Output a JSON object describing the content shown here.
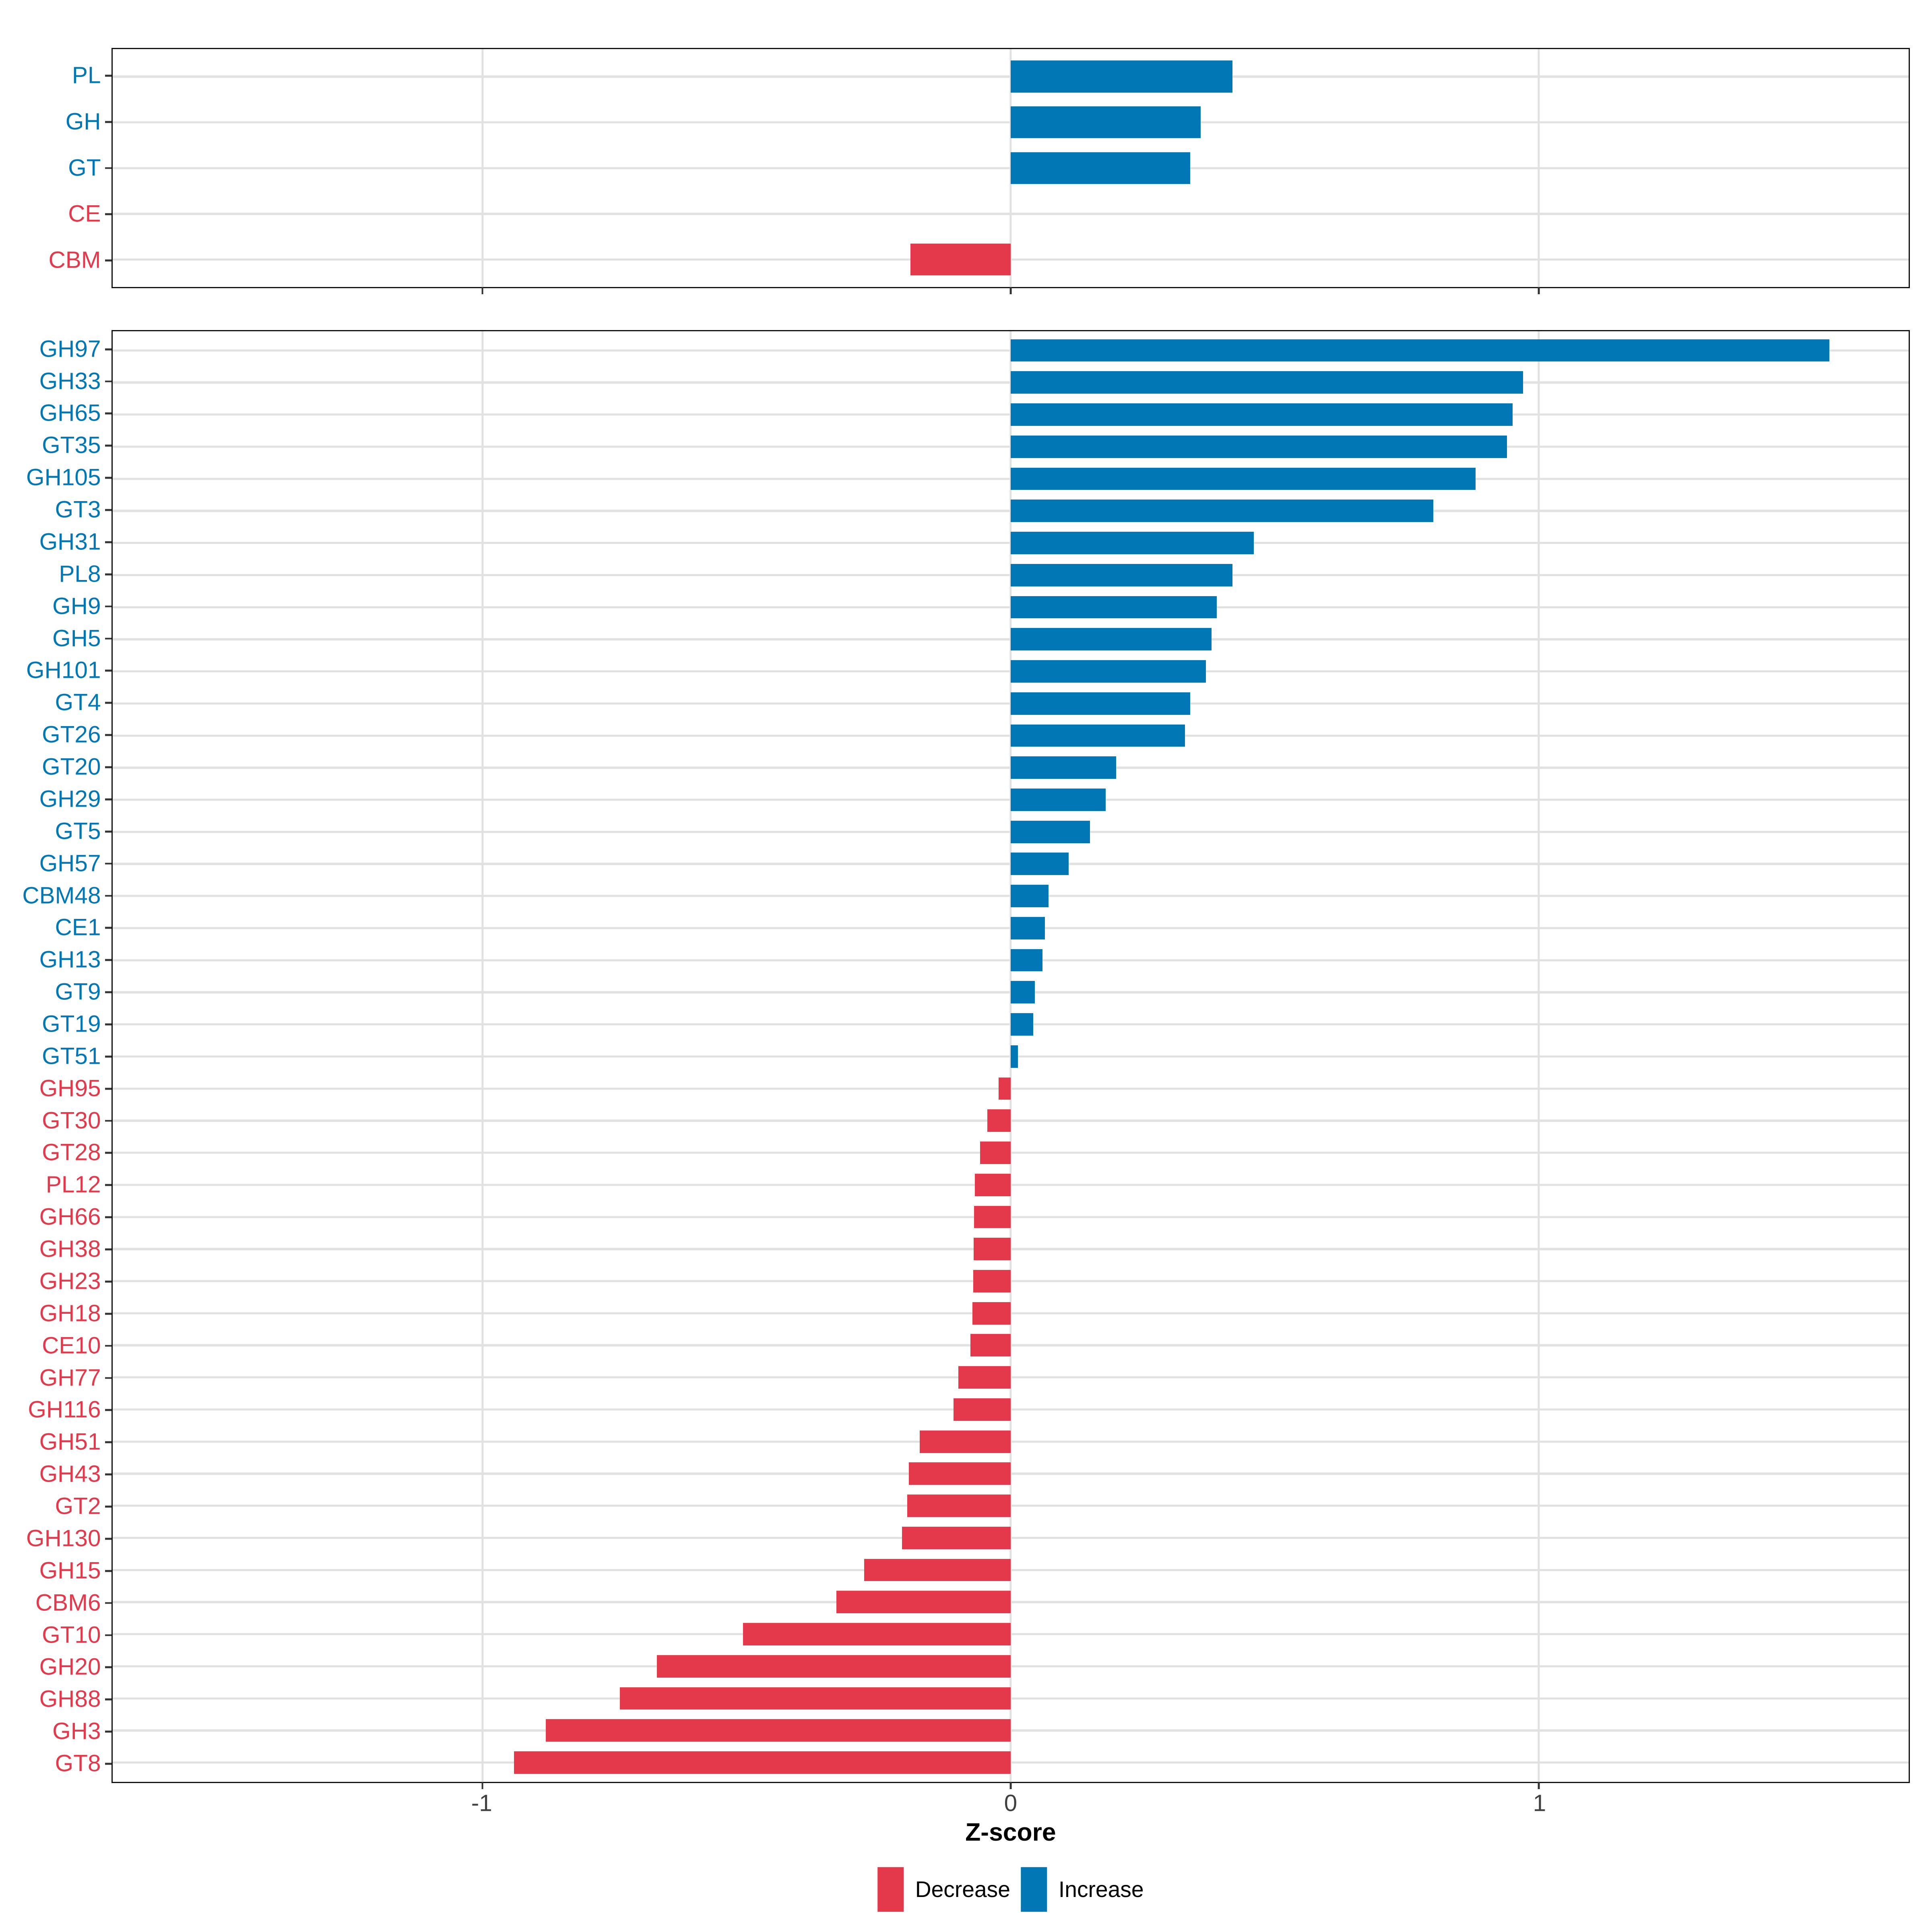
{
  "chart_data": [
    {
      "type": "bar",
      "orientation": "horizontal",
      "panel": "top",
      "categories": [
        "PL",
        "GH",
        "GT",
        "CE",
        "CBM"
      ],
      "values": [
        0.42,
        0.36,
        0.34,
        0.0,
        -0.19
      ],
      "directions": [
        "increase",
        "increase",
        "increase",
        "decrease",
        "decrease"
      ],
      "xlim": [
        -1.7,
        1.7
      ],
      "x_ticks": [
        -1,
        0,
        1
      ],
      "x_tick_labels": [
        "-1",
        "0",
        "1"
      ],
      "xlabel": "Z-score",
      "grid": true
    },
    {
      "type": "bar",
      "orientation": "horizontal",
      "panel": "main",
      "categories": [
        "GH97",
        "GH33",
        "GH65",
        "GT35",
        "GH105",
        "GT3",
        "GH31",
        "PL8",
        "GH9",
        "GH5",
        "GH101",
        "GT4",
        "GT26",
        "GT20",
        "GH29",
        "GT5",
        "GH57",
        "CBM48",
        "CE1",
        "GH13",
        "GT9",
        "GT19",
        "GT51",
        "GH95",
        "GT30",
        "GT28",
        "PL12",
        "GH66",
        "GH38",
        "GH23",
        "GH18",
        "CE10",
        "GH77",
        "GH116",
        "GH51",
        "GH43",
        "GT2",
        "GH130",
        "GH15",
        "CBM6",
        "GT10",
        "GH20",
        "GH88",
        "GH3",
        "GT8"
      ],
      "values": [
        1.55,
        0.97,
        0.95,
        0.94,
        0.88,
        0.8,
        0.46,
        0.42,
        0.39,
        0.38,
        0.37,
        0.34,
        0.33,
        0.2,
        0.18,
        0.15,
        0.11,
        0.072,
        0.065,
        0.06,
        0.046,
        0.043,
        0.014,
        -0.023,
        -0.044,
        -0.058,
        -0.068,
        -0.069,
        -0.07,
        -0.071,
        -0.072,
        -0.076,
        -0.099,
        -0.108,
        -0.172,
        -0.193,
        -0.196,
        -0.206,
        -0.277,
        -0.33,
        -0.507,
        -0.67,
        -0.74,
        -0.88,
        -0.94
      ],
      "directions": [
        "increase",
        "increase",
        "increase",
        "increase",
        "increase",
        "increase",
        "increase",
        "increase",
        "increase",
        "increase",
        "increase",
        "increase",
        "increase",
        "increase",
        "increase",
        "increase",
        "increase",
        "increase",
        "increase",
        "increase",
        "increase",
        "increase",
        "increase",
        "decrease",
        "decrease",
        "decrease",
        "decrease",
        "decrease",
        "decrease",
        "decrease",
        "decrease",
        "decrease",
        "decrease",
        "decrease",
        "decrease",
        "decrease",
        "decrease",
        "decrease",
        "decrease",
        "decrease",
        "decrease",
        "decrease",
        "decrease",
        "decrease",
        "decrease"
      ],
      "xlim": [
        -1.7,
        1.7
      ],
      "x_ticks": [
        -1,
        0,
        1
      ],
      "x_tick_labels": [
        "-1",
        "0",
        "1"
      ],
      "xlabel": "Z-score",
      "grid": true,
      "legend_position": "bottom"
    }
  ],
  "axis": {
    "xlabel": "Z-score",
    "tick_labels": [
      "-1",
      "0",
      "1"
    ]
  },
  "legend": {
    "items": [
      {
        "label": "Decrease",
        "color": "#E4394B",
        "key": "decrease"
      },
      {
        "label": "Increase",
        "color": "#0277B5",
        "key": "increase"
      }
    ]
  },
  "colors": {
    "increase": "#0277B5",
    "decrease": "#E4394B",
    "grid": "#E1E1E1",
    "panel_border": "#111111",
    "tick": "#333333",
    "tick_label": "#404040"
  }
}
